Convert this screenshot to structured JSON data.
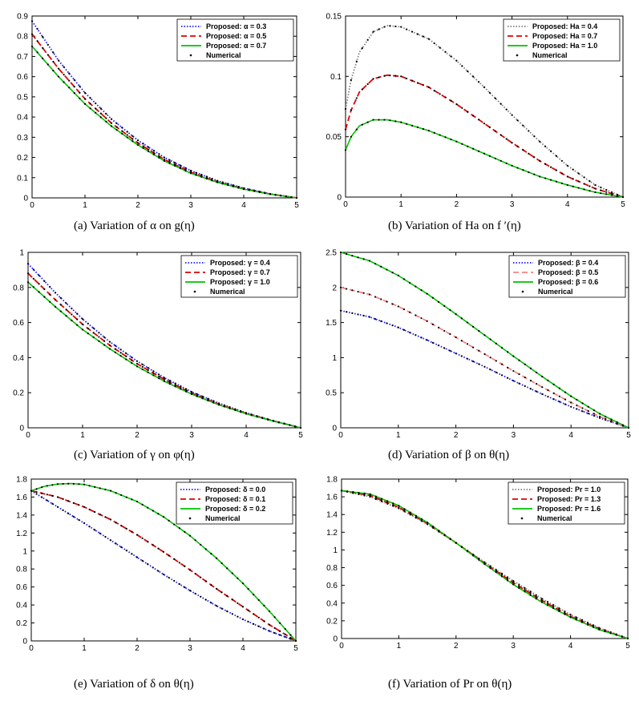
{
  "chart_data": [
    {
      "type": "line",
      "panel": "a",
      "caption": "(a)   Variation of  α  on  g(η)",
      "xlim": [
        0,
        5
      ],
      "ylim": [
        0,
        0.9
      ],
      "xticks": [
        "0",
        "1",
        "2",
        "3",
        "4",
        "5"
      ],
      "yticks": [
        "0",
        "0.1",
        "0.2",
        "0.3",
        "0.4",
        "0.5",
        "0.6",
        "0.7",
        "0.8",
        "0.9"
      ],
      "legend": {
        "position": "top-right",
        "entries": [
          "Proposed:   α = 0.3",
          "Proposed:   α = 0.5",
          "Proposed:   α = 0.7",
          "Numerical"
        ]
      },
      "series": [
        {
          "name": "Proposed: α = 0.3",
          "color": "#1a1aff",
          "dash": "dotted",
          "x": [
            0,
            0.5,
            1,
            1.5,
            2,
            2.5,
            3,
            3.5,
            4,
            4.5,
            5
          ],
          "y": [
            0.875,
            0.68,
            0.52,
            0.39,
            0.285,
            0.2,
            0.135,
            0.085,
            0.048,
            0.02,
            0
          ]
        },
        {
          "name": "Proposed: α = 0.5",
          "color": "#e00000",
          "dash": "dashed",
          "x": [
            0,
            0.5,
            1,
            1.5,
            2,
            2.5,
            3,
            3.5,
            4,
            4.5,
            5
          ],
          "y": [
            0.81,
            0.64,
            0.49,
            0.37,
            0.272,
            0.19,
            0.127,
            0.08,
            0.045,
            0.019,
            0
          ]
        },
        {
          "name": "Proposed: α = 0.7",
          "color": "#00c000",
          "dash": "solid",
          "x": [
            0,
            0.5,
            1,
            1.5,
            2,
            2.5,
            3,
            3.5,
            4,
            4.5,
            5
          ],
          "y": [
            0.75,
            0.6,
            0.465,
            0.355,
            0.262,
            0.183,
            0.122,
            0.077,
            0.043,
            0.018,
            0
          ]
        }
      ]
    },
    {
      "type": "line",
      "panel": "b",
      "caption": "(b)   Variation of Ha on  f ′(η)",
      "xlim": [
        0,
        5
      ],
      "ylim": [
        0,
        0.15
      ],
      "xticks": [
        "0",
        "1",
        "2",
        "3",
        "4",
        "5"
      ],
      "yticks": [
        "0",
        "0.05",
        "0.1",
        "0.15"
      ],
      "legend": {
        "position": "top-right",
        "entries": [
          "Proposed:   Ha = 0.4",
          "Proposed:   Ha = 0.7",
          "Proposed:   Ha = 1.0",
          "Numerical"
        ]
      },
      "series": [
        {
          "name": "Proposed: Ha = 0.4",
          "color": "#7f7f7f",
          "dash": "dotted",
          "x": [
            0,
            0.1,
            0.25,
            0.5,
            0.75,
            1,
            1.5,
            2,
            2.5,
            3,
            3.5,
            4,
            4.5,
            5
          ],
          "y": [
            0.073,
            0.097,
            0.12,
            0.137,
            0.142,
            0.141,
            0.131,
            0.113,
            0.091,
            0.068,
            0.046,
            0.026,
            0.01,
            0
          ]
        },
        {
          "name": "Proposed: Ha = 0.7",
          "color": "#e00000",
          "dash": "dashed",
          "x": [
            0,
            0.1,
            0.25,
            0.5,
            0.75,
            1,
            1.5,
            2,
            2.5,
            3,
            3.5,
            4,
            4.5,
            5
          ],
          "y": [
            0.056,
            0.072,
            0.087,
            0.098,
            0.101,
            0.1,
            0.091,
            0.077,
            0.061,
            0.045,
            0.03,
            0.017,
            0.007,
            0
          ]
        },
        {
          "name": "Proposed: Ha = 1.0",
          "color": "#00c000",
          "dash": "solid",
          "x": [
            0,
            0.1,
            0.25,
            0.5,
            0.75,
            1,
            1.5,
            2,
            2.5,
            3,
            3.5,
            4,
            4.5,
            5
          ],
          "y": [
            0.039,
            0.05,
            0.059,
            0.064,
            0.064,
            0.062,
            0.055,
            0.046,
            0.036,
            0.026,
            0.017,
            0.01,
            0.004,
            0
          ]
        }
      ]
    },
    {
      "type": "line",
      "panel": "c",
      "caption": "(c)   Variation of  γ  on  φ(η)",
      "xlim": [
        0,
        5
      ],
      "ylim": [
        0,
        1
      ],
      "xticks": [
        "0",
        "1",
        "2",
        "3",
        "4",
        "5"
      ],
      "yticks": [
        "0",
        "0.2",
        "0.4",
        "0.6",
        "0.8",
        "1"
      ],
      "legend": {
        "position": "top-right",
        "entries": [
          "Proposed:    γ = 0.4",
          "Proposed:    γ = 0.7",
          "Proposed:    γ = 1.0",
          "Numerical"
        ]
      },
      "series": [
        {
          "name": "Proposed: γ = 0.4",
          "color": "#1a1aff",
          "dash": "dotted",
          "x": [
            0,
            0.5,
            1,
            1.5,
            2,
            2.5,
            3,
            3.5,
            4,
            4.5,
            5
          ],
          "y": [
            0.935,
            0.77,
            0.62,
            0.49,
            0.38,
            0.285,
            0.205,
            0.14,
            0.085,
            0.04,
            0
          ]
        },
        {
          "name": "Proposed: γ = 0.7",
          "color": "#e00000",
          "dash": "dashed",
          "x": [
            0,
            0.5,
            1,
            1.5,
            2,
            2.5,
            3,
            3.5,
            4,
            4.5,
            5
          ],
          "y": [
            0.88,
            0.73,
            0.59,
            0.47,
            0.365,
            0.275,
            0.198,
            0.135,
            0.082,
            0.039,
            0
          ]
        },
        {
          "name": "Proposed: γ = 1.0",
          "color": "#00c000",
          "dash": "solid",
          "x": [
            0,
            0.5,
            1,
            1.5,
            2,
            2.5,
            3,
            3.5,
            4,
            4.5,
            5
          ],
          "y": [
            0.83,
            0.69,
            0.56,
            0.45,
            0.35,
            0.265,
            0.192,
            0.131,
            0.08,
            0.038,
            0
          ]
        }
      ]
    },
    {
      "type": "line",
      "panel": "d",
      "caption": "(d)   Variation of  β  on  θ(η)",
      "xlim": [
        0,
        5
      ],
      "ylim": [
        0,
        2.5
      ],
      "xticks": [
        "0",
        "1",
        "2",
        "3",
        "4",
        "5"
      ],
      "yticks": [
        "0",
        "0.5",
        "1",
        "1.5",
        "2",
        "2.5"
      ],
      "legend": {
        "position": "top-right",
        "entries": [
          "Proposed:    β = 0.4",
          "Proposed:    β = 0.5",
          "Proposed:    β = 0.6",
          "Numerical"
        ]
      },
      "series": [
        {
          "name": "Proposed: β = 0.4",
          "color": "#1a1aff",
          "dash": "dotted",
          "x": [
            0,
            0.5,
            1,
            1.5,
            2,
            2.5,
            3,
            3.5,
            4,
            4.5,
            5
          ],
          "y": [
            1.67,
            1.58,
            1.43,
            1.25,
            1.06,
            0.87,
            0.67,
            0.48,
            0.3,
            0.14,
            0
          ]
        },
        {
          "name": "Proposed: β = 0.5",
          "color": "#ff8080",
          "dash": "dashed",
          "x": [
            0,
            0.5,
            1,
            1.5,
            2,
            2.5,
            3,
            3.5,
            4,
            4.5,
            5
          ],
          "y": [
            2.0,
            1.9,
            1.73,
            1.52,
            1.29,
            1.05,
            0.81,
            0.58,
            0.36,
            0.16,
            0
          ]
        },
        {
          "name": "Proposed: β = 0.6",
          "color": "#00c000",
          "dash": "solid",
          "x": [
            0,
            0.5,
            1,
            1.5,
            2,
            2.5,
            3,
            3.5,
            4,
            4.5,
            5
          ],
          "y": [
            2.5,
            2.38,
            2.17,
            1.91,
            1.62,
            1.32,
            1.02,
            0.73,
            0.45,
            0.2,
            0
          ]
        }
      ]
    },
    {
      "type": "line",
      "panel": "e",
      "caption": "(e)   Variation of  δ  on  θ(η)",
      "xlim": [
        0,
        5
      ],
      "ylim": [
        0,
        1.8
      ],
      "xticks": [
        "0",
        "1",
        "2",
        "3",
        "4",
        "5"
      ],
      "yticks": [
        "0",
        "0.2",
        "0.4",
        "0.6",
        "0.8",
        "1",
        "1.2",
        "1.4",
        "1.6",
        "1.8"
      ],
      "legend": {
        "position": "top-right",
        "entries": [
          "Proposed:   δ = 0.0",
          "Proposed:   δ = 0.1",
          "Proposed:   δ = 0.2",
          "Numerical"
        ]
      },
      "series": [
        {
          "name": "Proposed: δ = 0.0",
          "color": "#1a1aff",
          "dash": "dotted",
          "x": [
            0,
            0.5,
            1,
            1.5,
            2,
            2.5,
            3,
            3.5,
            4,
            4.5,
            5
          ],
          "y": [
            1.67,
            1.49,
            1.31,
            1.12,
            0.93,
            0.74,
            0.56,
            0.39,
            0.24,
            0.11,
            0
          ]
        },
        {
          "name": "Proposed: δ = 0.1",
          "color": "#e00000",
          "dash": "dashed",
          "x": [
            0,
            0.5,
            1,
            1.5,
            2,
            2.5,
            3,
            3.5,
            4,
            4.5,
            5
          ],
          "y": [
            1.67,
            1.6,
            1.49,
            1.35,
            1.18,
            0.99,
            0.79,
            0.58,
            0.38,
            0.18,
            0
          ]
        },
        {
          "name": "Proposed: δ = 0.2",
          "color": "#00c000",
          "dash": "solid",
          "x": [
            0,
            0.25,
            0.5,
            0.75,
            1,
            1.5,
            2,
            2.5,
            3,
            3.5,
            4,
            4.5,
            5
          ],
          "y": [
            1.67,
            1.72,
            1.745,
            1.75,
            1.74,
            1.67,
            1.55,
            1.38,
            1.17,
            0.92,
            0.64,
            0.33,
            0
          ]
        }
      ]
    },
    {
      "type": "line",
      "panel": "f",
      "caption": "(f)   Variation of  Pr  on  θ(η)",
      "xlim": [
        0,
        5
      ],
      "ylim": [
        0,
        1.8
      ],
      "xticks": [
        "0",
        "1",
        "2",
        "3",
        "4",
        "5"
      ],
      "yticks": [
        "0",
        "0.2",
        "0.4",
        "0.6",
        "0.8",
        "1",
        "1.2",
        "1.4",
        "1.6",
        "1.8"
      ],
      "legend": {
        "position": "top-right",
        "entries": [
          "Proposed:    Pr = 1.0",
          "Proposed:    Pr = 1.3",
          "Proposed:    Pr = 1.6",
          "Numerical"
        ]
      },
      "series": [
        {
          "name": "Proposed: Pr = 1.0",
          "color": "#7f7f7f",
          "dash": "dotted",
          "x": [
            0,
            0.5,
            1,
            1.5,
            2,
            2.5,
            3,
            3.5,
            4,
            4.5,
            5
          ],
          "y": [
            1.67,
            1.6,
            1.47,
            1.29,
            1.08,
            0.86,
            0.65,
            0.45,
            0.27,
            0.12,
            0
          ]
        },
        {
          "name": "Proposed: Pr = 1.3",
          "color": "#e00000",
          "dash": "dashed",
          "x": [
            0,
            0.5,
            1,
            1.5,
            2,
            2.5,
            3,
            3.5,
            4,
            4.5,
            5
          ],
          "y": [
            1.67,
            1.615,
            1.48,
            1.3,
            1.08,
            0.85,
            0.63,
            0.43,
            0.25,
            0.11,
            0
          ]
        },
        {
          "name": "Proposed: Pr = 1.6",
          "color": "#00c000",
          "dash": "solid",
          "x": [
            0,
            0.5,
            1,
            1.5,
            2,
            2.5,
            3,
            3.5,
            4,
            4.5,
            5
          ],
          "y": [
            1.67,
            1.63,
            1.5,
            1.31,
            1.08,
            0.84,
            0.61,
            0.41,
            0.24,
            0.1,
            0
          ]
        }
      ]
    }
  ]
}
